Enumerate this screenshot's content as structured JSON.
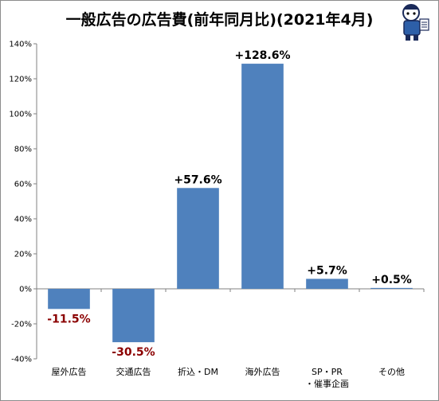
{
  "chart_data": {
    "type": "bar",
    "title": "一般広告の広告費(前年同月比)(2021年4月)",
    "categories": [
      "屋外広告",
      "交通広告",
      "折込・DM",
      "海外広告",
      "SP・PR・催事企画",
      "その他"
    ],
    "category_lines": [
      [
        "屋外広告"
      ],
      [
        "交通広告"
      ],
      [
        "折込・DM"
      ],
      [
        "海外広告"
      ],
      [
        "SP・PR",
        "・催事企画"
      ],
      [
        "その他"
      ]
    ],
    "values": [
      -11.5,
      -30.5,
      57.6,
      128.6,
      5.7,
      0.5
    ],
    "data_labels": [
      "-11.5%",
      "-30.5%",
      "+57.6%",
      "+128.6%",
      "+5.7%",
      "+0.5%"
    ],
    "ylim": [
      -40,
      140
    ],
    "y_ticks": [
      -40,
      -20,
      0,
      20,
      40,
      60,
      80,
      100,
      120,
      140
    ],
    "y_tick_labels": [
      "-40%",
      "-20%",
      "0%",
      "20%",
      "40%",
      "60%",
      "80%",
      "100%",
      "120%",
      "140%"
    ],
    "bar_color": "#4f81bd",
    "positive_label_color": "#000000",
    "negative_label_color": "#8b0000",
    "grid": false,
    "legend": "none"
  }
}
